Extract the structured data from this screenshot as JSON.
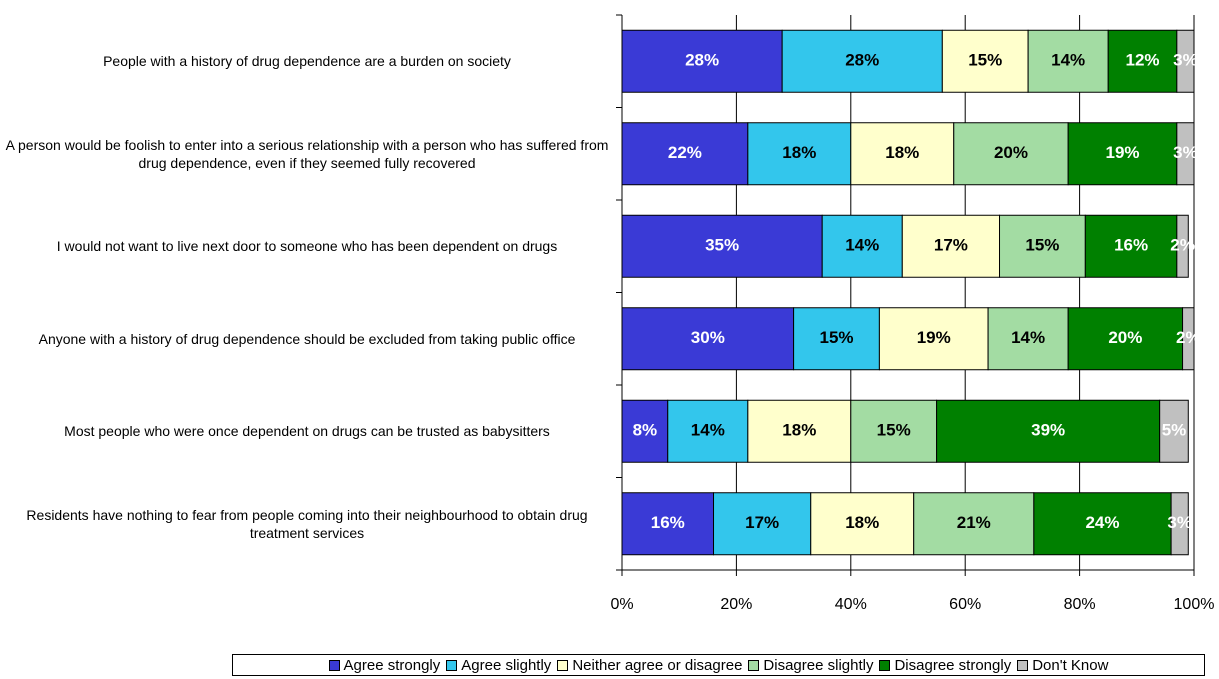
{
  "chart_data": {
    "type": "stacked-barh",
    "categories": [
      "People with a history of drug dependence are a burden on society",
      "A person would be foolish to enter into a serious relationship with a person who has suffered from drug dependence, even if they seemed fully recovered",
      "I would not want to live next door to someone who has been dependent on drugs",
      "Anyone with a history of drug dependence should be excluded from taking public office",
      "Most people who were once dependent on drugs can be trusted as babysitters",
      "Residents have nothing to fear from people coming into their neighbourhood to obtain drug treatment services"
    ],
    "series": [
      {
        "name": "Agree strongly",
        "color": "#3a3ad6",
        "values": [
          28,
          22,
          35,
          30,
          8,
          16
        ],
        "value_labels": [
          "28%",
          "22%",
          "35%",
          "30%",
          "8%",
          "16%"
        ]
      },
      {
        "name": "Agree slightly",
        "color": "#33c6ec",
        "values": [
          28,
          18,
          14,
          15,
          14,
          17
        ],
        "value_labels": [
          "28%",
          "18%",
          "14%",
          "15%",
          "14%",
          "17%"
        ]
      },
      {
        "name": "Neither agree or disagree",
        "color": "#ffffcc",
        "values": [
          15,
          18,
          17,
          19,
          18,
          18
        ],
        "value_labels": [
          "15%",
          "18%",
          "17%",
          "19%",
          "18%",
          "18%"
        ]
      },
      {
        "name": "Disagree slightly",
        "color": "#a3dca3",
        "values": [
          14,
          20,
          15,
          14,
          15,
          21
        ],
        "value_labels": [
          "14%",
          "20%",
          "15%",
          "14%",
          "15%",
          "21%"
        ]
      },
      {
        "name": "Disagree strongly",
        "color": "#008000",
        "values": [
          12,
          19,
          16,
          20,
          39,
          24
        ],
        "value_labels": [
          "12%",
          "19%",
          "16%",
          "20%",
          "39%",
          "24%"
        ]
      },
      {
        "name": "Don't Know",
        "color": "#c0c0c0",
        "values": [
          3,
          3,
          2,
          2,
          5,
          3
        ],
        "value_labels": [
          "3%",
          "3%",
          "2%",
          "2%",
          "5%",
          "3%"
        ]
      }
    ],
    "xlim": [
      0,
      100
    ],
    "xticks": [
      {
        "value": 0,
        "label": "0%"
      },
      {
        "value": 20,
        "label": "20%"
      },
      {
        "value": 40,
        "label": "40%"
      },
      {
        "value": 60,
        "label": "60%"
      },
      {
        "value": 80,
        "label": "80%"
      },
      {
        "value": 100,
        "label": "100%"
      }
    ],
    "grid": true
  }
}
